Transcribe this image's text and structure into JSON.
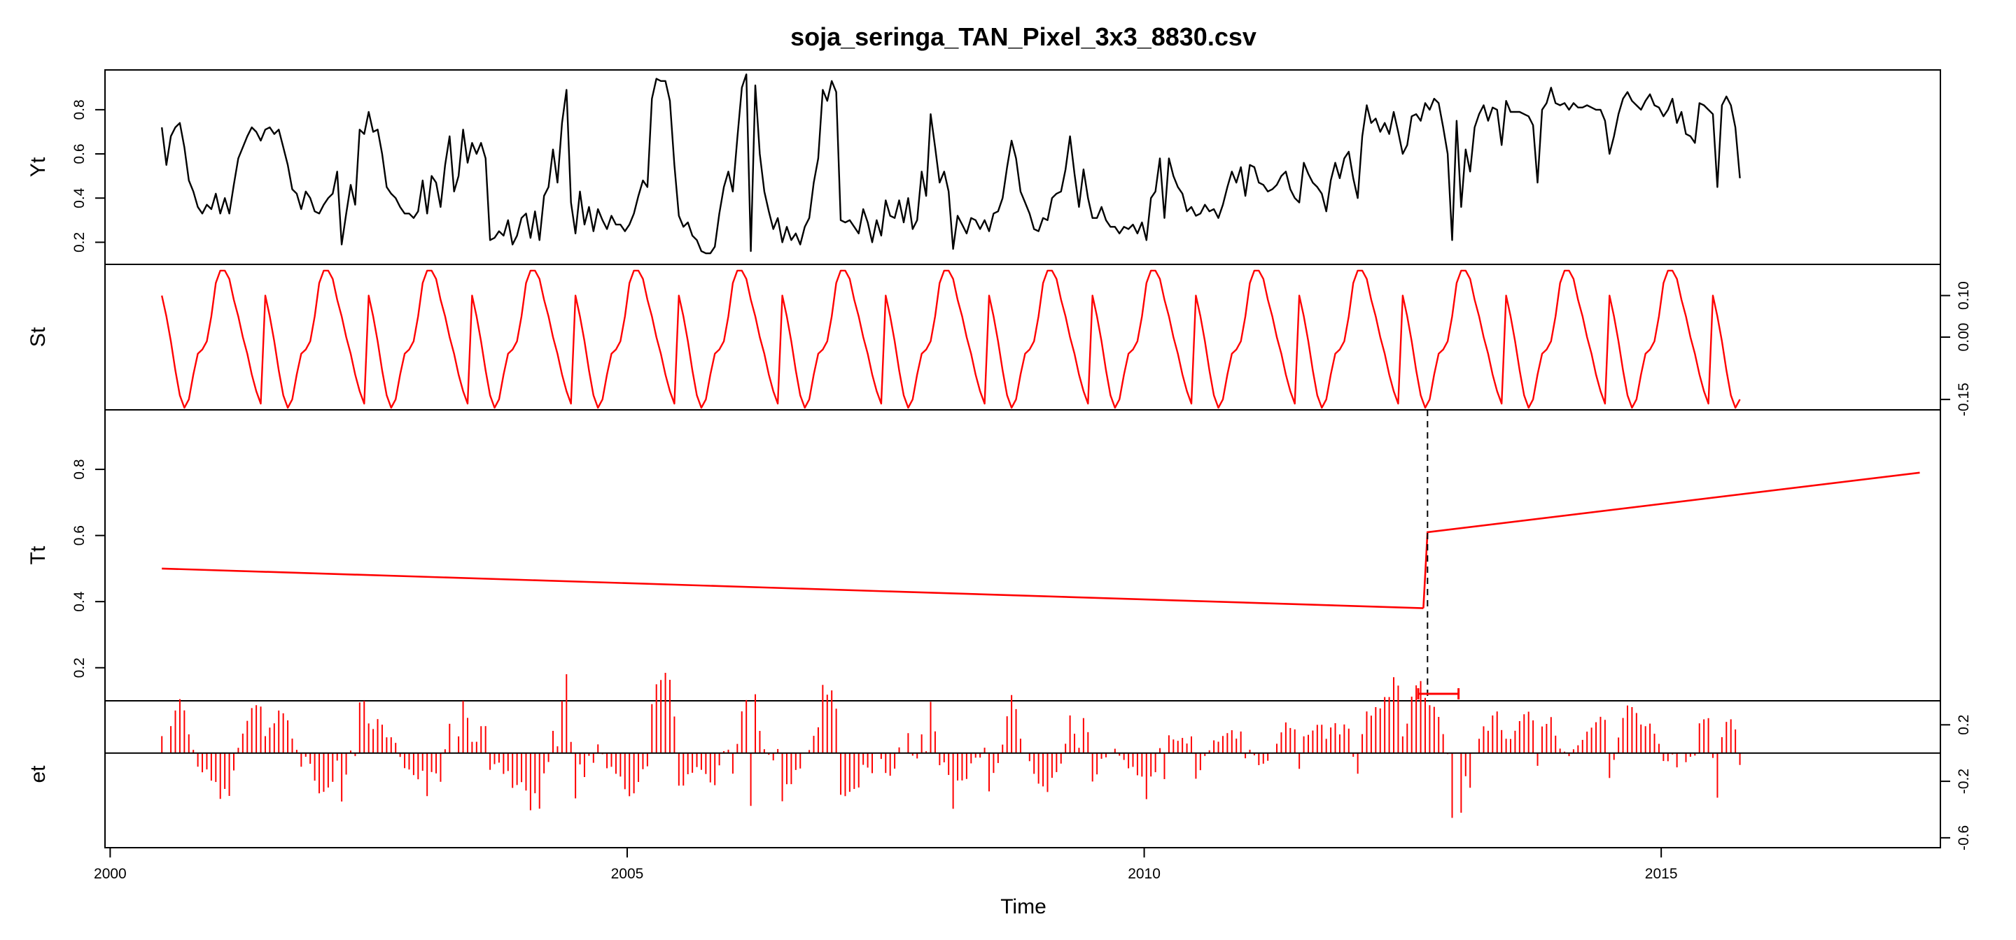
{
  "chart_data": {
    "type": "line",
    "title": "soja_seringa_TAN_Pixel_3x3_8830.csv",
    "xlabel": "Time",
    "xlim": [
      1999.95,
      2017.7
    ],
    "x_ticks": [
      2000,
      2005,
      2010,
      2015
    ],
    "x_tick_labels": [
      "2000",
      "2005",
      "2010",
      "2015"
    ],
    "start": 2000.5,
    "frequency": 23,
    "grid": false,
    "panels": [
      {
        "name": "Yt",
        "label": "Yt",
        "color": "#000000",
        "style": "line",
        "ylim": [
          0.1,
          0.98
        ],
        "ticks": [
          0.2,
          0.4,
          0.6,
          0.8
        ],
        "tick_labels": [
          "0.2",
          "0.4",
          "0.6",
          "0.8"
        ],
        "tick_side": "left",
        "values": [
          0.72,
          0.55,
          0.68,
          0.72,
          0.74,
          0.63,
          0.48,
          0.43,
          0.36,
          0.33,
          0.37,
          0.35,
          0.42,
          0.33,
          0.4,
          0.33,
          0.46,
          0.58,
          0.63,
          0.68,
          0.72,
          0.7,
          0.66,
          0.71,
          0.72,
          0.69,
          0.71,
          0.63,
          0.55,
          0.44,
          0.42,
          0.35,
          0.43,
          0.4,
          0.34,
          0.33,
          0.37,
          0.4,
          0.42,
          0.52,
          0.19,
          0.33,
          0.46,
          0.37,
          0.71,
          0.69,
          0.79,
          0.7,
          0.71,
          0.6,
          0.45,
          0.42,
          0.4,
          0.36,
          0.33,
          0.33,
          0.31,
          0.34,
          0.48,
          0.33,
          0.5,
          0.47,
          0.36,
          0.55,
          0.68,
          0.43,
          0.5,
          0.71,
          0.56,
          0.65,
          0.6,
          0.65,
          0.58,
          0.21,
          0.22,
          0.25,
          0.23,
          0.3,
          0.19,
          0.23,
          0.31,
          0.33,
          0.22,
          0.34,
          0.21,
          0.41,
          0.45,
          0.62,
          0.47,
          0.74,
          0.89,
          0.38,
          0.24,
          0.43,
          0.28,
          0.36,
          0.25,
          0.35,
          0.3,
          0.26,
          0.32,
          0.28,
          0.28,
          0.25,
          0.28,
          0.33,
          0.41,
          0.48,
          0.45,
          0.85,
          0.94,
          0.93,
          0.93,
          0.84,
          0.55,
          0.32,
          0.27,
          0.29,
          0.23,
          0.21,
          0.16,
          0.15,
          0.15,
          0.18,
          0.33,
          0.45,
          0.52,
          0.43,
          0.67,
          0.9,
          0.96,
          0.16,
          0.91,
          0.6,
          0.43,
          0.34,
          0.26,
          0.31,
          0.2,
          0.27,
          0.21,
          0.24,
          0.19,
          0.27,
          0.31,
          0.47,
          0.58,
          0.89,
          0.84,
          0.93,
          0.88,
          0.3,
          0.29,
          0.3,
          0.27,
          0.24,
          0.35,
          0.29,
          0.2,
          0.3,
          0.23,
          0.39,
          0.32,
          0.31,
          0.39,
          0.29,
          0.4,
          0.26,
          0.3,
          0.52,
          0.41,
          0.78,
          0.63,
          0.47,
          0.52,
          0.43,
          0.17,
          0.32,
          0.28,
          0.24,
          0.31,
          0.3,
          0.26,
          0.3,
          0.25,
          0.33,
          0.34,
          0.4,
          0.54,
          0.66,
          0.58,
          0.43,
          0.38,
          0.33,
          0.26,
          0.25,
          0.31,
          0.3,
          0.4,
          0.42,
          0.43,
          0.53,
          0.68,
          0.51,
          0.36,
          0.53,
          0.4,
          0.31,
          0.31,
          0.36,
          0.3,
          0.27,
          0.27,
          0.24,
          0.27,
          0.26,
          0.28,
          0.24,
          0.29,
          0.21,
          0.4,
          0.43,
          0.58,
          0.31,
          0.58,
          0.5,
          0.45,
          0.42,
          0.34,
          0.36,
          0.32,
          0.33,
          0.37,
          0.34,
          0.35,
          0.31,
          0.37,
          0.45,
          0.52,
          0.47,
          0.54,
          0.41,
          0.55,
          0.54,
          0.47,
          0.46,
          0.43,
          0.44,
          0.46,
          0.5,
          0.52,
          0.44,
          0.4,
          0.38,
          0.56,
          0.51,
          0.47,
          0.45,
          0.42,
          0.34,
          0.48,
          0.56,
          0.49,
          0.58,
          0.61,
          0.49,
          0.4,
          0.68,
          0.82,
          0.74,
          0.76,
          0.7,
          0.74,
          0.69,
          0.79,
          0.7,
          0.6,
          0.64,
          0.77,
          0.78,
          0.75,
          0.83,
          0.8,
          0.85,
          0.83,
          0.72,
          0.6,
          0.21,
          0.75,
          0.36,
          0.62,
          0.52,
          0.72,
          0.78,
          0.82,
          0.75,
          0.81,
          0.8,
          0.64,
          0.84,
          0.79,
          0.79,
          0.79,
          0.78,
          0.77,
          0.73,
          0.47,
          0.8,
          0.83,
          0.9,
          0.83,
          0.82,
          0.83,
          0.8,
          0.83,
          0.81,
          0.81,
          0.82,
          0.81,
          0.8,
          0.8,
          0.75,
          0.6,
          0.68,
          0.78,
          0.85,
          0.88,
          0.84,
          0.82,
          0.8,
          0.84,
          0.87,
          0.82,
          0.81,
          0.77,
          0.8,
          0.85,
          0.74,
          0.79,
          0.69,
          0.68,
          0.65,
          0.83,
          0.82,
          0.8,
          0.78,
          0.45,
          0.82,
          0.86,
          0.82,
          0.72,
          0.49
        ]
      },
      {
        "name": "St",
        "label": "St",
        "color": "#ff0000",
        "style": "line",
        "ylim": [
          -0.175,
          0.175
        ],
        "ticks": [
          -0.15,
          0.0,
          0.1
        ],
        "tick_labels": [
          "-0.15",
          "0.00",
          "0.10"
        ],
        "tick_side": "right",
        "cycle": [
          0.1,
          0.05,
          -0.01,
          -0.08,
          -0.14,
          -0.17,
          -0.15,
          -0.09,
          -0.04,
          -0.03,
          -0.01,
          0.05,
          0.13,
          0.16,
          0.16,
          0.14,
          0.09,
          0.05,
          0.0,
          -0.04,
          -0.09,
          -0.13,
          -0.16
        ]
      },
      {
        "name": "Tt",
        "label": "Tt",
        "color": "#ff0000",
        "style": "line",
        "ylim": [
          0.1,
          0.98
        ],
        "ticks": [
          0.2,
          0.4,
          0.6,
          0.8
        ],
        "tick_labels": [
          "0.2",
          "0.4",
          "0.6",
          "0.8"
        ],
        "tick_side": "left",
        "segments": [
          {
            "x": [
              2000.5,
              2012.7
            ],
            "y": [
              0.5,
              0.38
            ]
          },
          {
            "x": [
              2012.7,
              2012.74,
              2017.5
            ],
            "y": [
              0.38,
              0.61,
              0.79
            ]
          }
        ],
        "breakpoint": 2012.74,
        "breakpoint_ci": [
          2012.65,
          2013.04
        ]
      },
      {
        "name": "et",
        "label": "et",
        "color": "#ff0000",
        "style": "histogram",
        "ylim": [
          -0.67,
          0.37
        ],
        "ticks": [
          -0.6,
          -0.2,
          0.2
        ],
        "tick_labels": [
          "-0.6",
          "-0.2",
          "0.2"
        ],
        "tick_side": "right",
        "zero_line": true
      }
    ]
  }
}
